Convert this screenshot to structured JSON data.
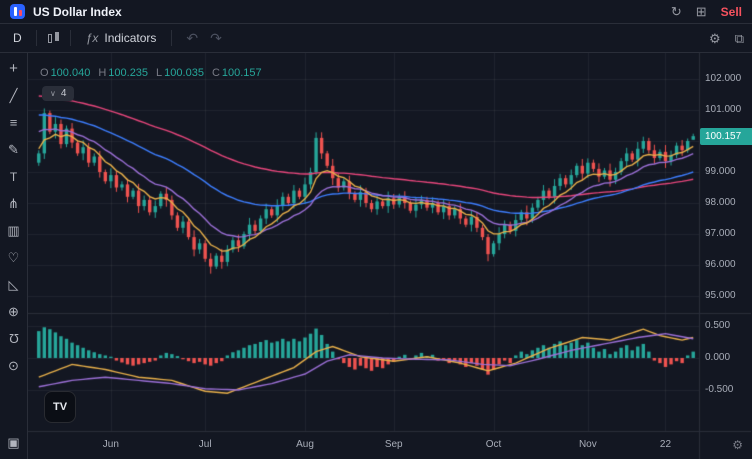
{
  "header": {
    "title": "US Dollar Index",
    "sell_label": "Sell"
  },
  "icons": {
    "refresh": "↻",
    "layout": "⊞",
    "gear": "⚙",
    "fullscreen": "⧉",
    "undo": "↶",
    "redo": "↷",
    "corner_gear": "⚙"
  },
  "toolbar": {
    "interval": "D",
    "fx_glyph": "ƒx",
    "indicators_label": "Indicators"
  },
  "legend": {
    "o_label": "O",
    "o": "100.040",
    "h_label": "H",
    "h": "100.235",
    "l_label": "L",
    "l": "100.035",
    "c_label": "C",
    "c": "100.157"
  },
  "legend_badge": {
    "chevron": "∨",
    "count": "4"
  },
  "watermark": {
    "glyph": "TV"
  },
  "tools": [
    {
      "name": "crosshair",
      "glyph": "+"
    },
    {
      "name": "trend-line",
      "glyph": "╱"
    },
    {
      "name": "fib-retracement",
      "glyph": "≡"
    },
    {
      "name": "brush",
      "glyph": "✎"
    },
    {
      "name": "text",
      "glyph": "T"
    },
    {
      "name": "xabcd-pattern",
      "glyph": "⋔"
    },
    {
      "name": "forecast",
      "glyph": "▥"
    },
    {
      "name": "emoji",
      "glyph": "♡"
    },
    {
      "name": "measure",
      "glyph": "◺"
    },
    {
      "name": "zoom-in",
      "glyph": "⊕"
    },
    {
      "name": "magnet",
      "glyph": "Ω"
    },
    {
      "name": "lock-all",
      "glyph": "⊙"
    }
  ],
  "bottom_tool": {
    "name": "object-tree",
    "glyph": "▣"
  },
  "price_axis": {
    "labels": [
      {
        "value": 102,
        "label": "102.000"
      },
      {
        "value": 101,
        "label": "101.000"
      },
      {
        "value": 100,
        "label": "100.000"
      },
      {
        "value": 99,
        "label": "99.000"
      },
      {
        "value": 98,
        "label": "98.000"
      },
      {
        "value": 97,
        "label": "97.000"
      },
      {
        "value": 96,
        "label": "96.000"
      },
      {
        "value": 95,
        "label": "95.000"
      }
    ],
    "badge": {
      "label": "100.157",
      "price": 100.157,
      "color": "#26a69a"
    }
  },
  "indicator_axis": {
    "labels": [
      {
        "value": 0.5,
        "label": "0.500"
      },
      {
        "value": 0.0,
        "label": "0.000"
      },
      {
        "value": -0.5,
        "label": "-0.500"
      }
    ]
  },
  "time_axis": {
    "ticks": [
      {
        "i": 13,
        "label": "Jun"
      },
      {
        "i": 30,
        "label": "Jul"
      },
      {
        "i": 48,
        "label": "Aug"
      },
      {
        "i": 64,
        "label": "Sep"
      },
      {
        "i": 82,
        "label": "Oct"
      },
      {
        "i": 99,
        "label": "Nov"
      },
      {
        "i": 113,
        "label": "22"
      }
    ]
  },
  "chart_data": {
    "type": "candlestick",
    "title": "US Dollar Index",
    "interval": "D",
    "last": {
      "open": 100.04,
      "high": 100.235,
      "low": 100.035,
      "close": 100.157
    },
    "price_range": {
      "min": 94.5,
      "max": 102.85
    },
    "colors": {
      "up": "#26a69a",
      "down": "#ef5350",
      "grid": "rgba(255,255,255,0.055)",
      "separator": "#2a2e39",
      "background": "#131722"
    },
    "candles": [
      [
        99.3,
        99.7,
        99.2,
        99.6
      ],
      [
        99.6,
        101.05,
        99.42,
        100.9
      ],
      [
        100.9,
        100.98,
        100.22,
        100.3
      ],
      [
        100.3,
        100.77,
        100.08,
        100.55
      ],
      [
        100.55,
        100.69,
        99.76,
        99.9
      ],
      [
        99.9,
        100.5,
        99.8,
        100.4
      ],
      [
        100.4,
        100.58,
        99.77,
        99.95
      ],
      [
        99.95,
        100.03,
        99.52,
        99.6
      ],
      [
        99.6,
        100.02,
        99.38,
        99.8
      ],
      [
        99.8,
        99.94,
        99.16,
        99.3
      ],
      [
        99.3,
        99.6,
        99.2,
        99.5
      ],
      [
        99.5,
        99.68,
        98.82,
        99.0
      ],
      [
        99.0,
        99.08,
        98.62,
        98.7
      ],
      [
        98.7,
        99.12,
        98.48,
        98.9
      ],
      [
        98.9,
        99.04,
        98.36,
        98.5
      ],
      [
        98.5,
        98.7,
        98.4,
        98.6
      ],
      [
        98.6,
        98.78,
        98.02,
        98.2
      ],
      [
        98.2,
        98.48,
        98.12,
        98.4
      ],
      [
        98.4,
        98.62,
        97.68,
        97.9
      ],
      [
        97.9,
        98.24,
        97.76,
        98.1
      ],
      [
        98.1,
        98.2,
        97.6,
        97.7
      ],
      [
        97.7,
        98.08,
        97.52,
        97.9
      ],
      [
        97.9,
        98.38,
        97.82,
        98.3
      ],
      [
        98.3,
        98.52,
        97.88,
        98.1
      ],
      [
        98.1,
        98.24,
        97.46,
        97.6
      ],
      [
        97.6,
        97.7,
        97.1,
        97.2
      ],
      [
        97.2,
        97.58,
        97.02,
        97.4
      ],
      [
        97.4,
        97.48,
        96.82,
        96.9
      ],
      [
        96.9,
        97.12,
        96.28,
        96.5
      ],
      [
        96.5,
        96.84,
        96.36,
        96.7
      ],
      [
        96.7,
        96.8,
        96.1,
        96.2
      ],
      [
        96.2,
        96.38,
        95.72,
        95.95
      ],
      [
        95.95,
        96.38,
        95.87,
        96.3
      ],
      [
        96.3,
        96.52,
        95.88,
        96.1
      ],
      [
        96.1,
        96.64,
        95.96,
        96.5
      ],
      [
        96.5,
        96.9,
        96.4,
        96.8
      ],
      [
        96.8,
        96.98,
        96.42,
        96.6
      ],
      [
        96.6,
        97.08,
        96.52,
        97.0
      ],
      [
        97.0,
        97.52,
        96.78,
        97.3
      ],
      [
        97.3,
        97.44,
        96.96,
        97.1
      ],
      [
        97.1,
        97.6,
        97.0,
        97.5
      ],
      [
        97.5,
        97.98,
        97.32,
        97.8
      ],
      [
        97.8,
        97.88,
        97.52,
        97.6
      ],
      [
        97.6,
        98.12,
        97.38,
        97.9
      ],
      [
        97.9,
        98.34,
        97.76,
        98.2
      ],
      [
        98.2,
        98.3,
        97.9,
        98.0
      ],
      [
        98.0,
        98.58,
        97.82,
        98.4
      ],
      [
        98.4,
        98.48,
        98.12,
        98.2
      ],
      [
        98.2,
        98.82,
        97.98,
        98.6
      ],
      [
        98.6,
        99.14,
        98.46,
        99.0
      ],
      [
        99.0,
        100.28,
        98.9,
        100.1
      ],
      [
        100.1,
        100.28,
        99.42,
        99.6
      ],
      [
        99.6,
        99.68,
        99.12,
        99.2
      ],
      [
        99.2,
        99.42,
        98.58,
        98.8
      ],
      [
        98.8,
        98.94,
        98.36,
        98.5
      ],
      [
        98.5,
        98.8,
        98.4,
        98.7
      ],
      [
        98.7,
        98.88,
        98.12,
        98.3
      ],
      [
        98.3,
        98.38,
        98.02,
        98.1
      ],
      [
        98.1,
        98.57,
        97.88,
        98.35
      ],
      [
        98.35,
        98.49,
        97.86,
        98.0
      ],
      [
        98.0,
        98.1,
        97.7,
        97.8
      ],
      [
        97.8,
        98.23,
        97.62,
        98.05
      ],
      [
        98.05,
        98.13,
        97.82,
        97.9
      ],
      [
        97.9,
        98.37,
        97.68,
        98.15
      ],
      [
        98.15,
        98.29,
        97.81,
        97.95
      ],
      [
        97.95,
        98.3,
        97.85,
        98.2
      ],
      [
        98.2,
        98.38,
        97.82,
        98.0
      ],
      [
        98.0,
        98.08,
        97.67,
        97.75
      ],
      [
        97.75,
        98.17,
        97.53,
        97.95
      ],
      [
        97.95,
        98.24,
        97.81,
        98.1
      ],
      [
        98.1,
        98.2,
        97.75,
        97.85
      ],
      [
        97.85,
        98.18,
        97.67,
        98.0
      ],
      [
        98.0,
        98.08,
        97.62,
        97.7
      ],
      [
        97.7,
        98.12,
        97.48,
        97.9
      ],
      [
        97.9,
        98.04,
        97.46,
        97.6
      ],
      [
        97.6,
        97.9,
        97.5,
        97.8
      ],
      [
        97.8,
        97.98,
        97.32,
        97.5
      ],
      [
        97.5,
        97.58,
        97.22,
        97.3
      ],
      [
        97.3,
        97.77,
        97.08,
        97.55
      ],
      [
        97.55,
        97.69,
        97.06,
        97.2
      ],
      [
        97.2,
        97.3,
        96.8,
        96.9
      ],
      [
        96.9,
        97.0,
        96.12,
        96.35
      ],
      [
        96.35,
        96.78,
        96.27,
        96.7
      ],
      [
        96.7,
        97.22,
        96.48,
        97.0
      ],
      [
        97.0,
        97.44,
        96.86,
        97.3
      ],
      [
        97.3,
        97.4,
        97.0,
        97.1
      ],
      [
        97.1,
        97.63,
        96.92,
        97.45
      ],
      [
        97.45,
        97.78,
        97.37,
        97.7
      ],
      [
        97.7,
        97.92,
        97.28,
        97.5
      ],
      [
        97.5,
        97.99,
        97.36,
        97.85
      ],
      [
        97.85,
        98.2,
        97.75,
        98.1
      ],
      [
        98.1,
        98.58,
        97.92,
        98.4
      ],
      [
        98.4,
        98.48,
        98.12,
        98.2
      ],
      [
        98.2,
        98.77,
        97.98,
        98.55
      ],
      [
        98.55,
        98.94,
        98.41,
        98.8
      ],
      [
        98.8,
        98.9,
        98.5,
        98.6
      ],
      [
        98.6,
        99.08,
        98.42,
        98.9
      ],
      [
        98.9,
        99.28,
        98.82,
        99.2
      ],
      [
        99.2,
        99.42,
        98.73,
        98.95
      ],
      [
        98.95,
        99.44,
        98.81,
        99.3
      ],
      [
        99.3,
        99.4,
        99.0,
        99.1
      ],
      [
        99.1,
        99.28,
        98.67,
        98.85
      ],
      [
        98.85,
        99.13,
        98.77,
        99.05
      ],
      [
        99.05,
        99.27,
        98.53,
        98.75
      ],
      [
        98.75,
        99.14,
        98.61,
        99.0
      ],
      [
        99.0,
        99.45,
        98.9,
        99.35
      ],
      [
        99.35,
        99.78,
        99.17,
        99.6
      ],
      [
        99.6,
        99.68,
        99.32,
        99.4
      ],
      [
        99.4,
        99.97,
        99.18,
        99.75
      ],
      [
        99.75,
        100.14,
        99.61,
        100.0
      ],
      [
        100.0,
        100.1,
        99.6,
        99.7
      ],
      [
        99.7,
        99.88,
        99.27,
        99.45
      ],
      [
        99.45,
        99.73,
        99.37,
        99.65
      ],
      [
        99.65,
        99.87,
        99.13,
        99.35
      ],
      [
        99.35,
        99.69,
        99.21,
        99.55
      ],
      [
        99.55,
        99.95,
        99.45,
        99.85
      ],
      [
        99.85,
        100.03,
        99.52,
        99.7
      ],
      [
        99.7,
        100.08,
        99.62,
        100.0
      ],
      [
        100.04,
        100.235,
        100.035,
        100.157
      ]
    ],
    "overlays": [
      {
        "name": "ema-long",
        "period": 80,
        "seed": 101.5,
        "color": "#e8467c"
      },
      {
        "name": "ema-slow",
        "period": 40,
        "seed": 100.9,
        "color": "#3d7eff"
      },
      {
        "name": "ema-medium",
        "period": 15,
        "seed": 100.4,
        "color": "#9b6fd6"
      },
      {
        "name": "ema-fast",
        "period": 7,
        "seed": 99.8,
        "color": "#e8b04a"
      }
    ],
    "macd": {
      "range": {
        "min": -1.1,
        "max": 0.7
      },
      "histogram": [
        0.42,
        0.48,
        0.45,
        0.4,
        0.34,
        0.3,
        0.24,
        0.2,
        0.16,
        0.12,
        0.09,
        0.06,
        0.04,
        0.02,
        -0.04,
        -0.07,
        -0.1,
        -0.12,
        -0.1,
        -0.08,
        -0.06,
        -0.04,
        0.04,
        0.08,
        0.06,
        0.03,
        -0.02,
        -0.05,
        -0.08,
        -0.06,
        -0.1,
        -0.12,
        -0.08,
        -0.05,
        0.04,
        0.09,
        0.12,
        0.16,
        0.2,
        0.22,
        0.25,
        0.28,
        0.24,
        0.26,
        0.3,
        0.26,
        0.3,
        0.26,
        0.32,
        0.38,
        0.46,
        0.36,
        0.22,
        0.1,
        -0.02,
        -0.08,
        -0.14,
        -0.18,
        -0.12,
        -0.16,
        -0.2,
        -0.14,
        -0.16,
        -0.1,
        -0.06,
        0.02,
        0.05,
        -0.03,
        0.04,
        0.08,
        0.03,
        0.05,
        -0.04,
        -0.02,
        -0.08,
        -0.05,
        -0.1,
        -0.14,
        -0.08,
        -0.12,
        -0.18,
        -0.26,
        -0.18,
        -0.1,
        -0.04,
        -0.08,
        0.04,
        0.1,
        0.06,
        0.12,
        0.16,
        0.2,
        0.16,
        0.22,
        0.26,
        0.2,
        0.24,
        0.28,
        0.2,
        0.24,
        0.16,
        0.1,
        0.14,
        0.06,
        0.1,
        0.16,
        0.2,
        0.12,
        0.18,
        0.22,
        0.1,
        -0.04,
        -0.08,
        -0.14,
        -0.1,
        -0.05,
        -0.08,
        0.04,
        0.1
      ],
      "lines": [
        {
          "name": "macd-line",
          "color": "#e8b04a",
          "points": [
            [
              0,
              -0.3
            ],
            [
              6,
              -0.1
            ],
            [
              12,
              -0.18
            ],
            [
              18,
              -0.3
            ],
            [
              24,
              -0.35
            ],
            [
              30,
              -0.52
            ],
            [
              34,
              -0.55
            ],
            [
              40,
              -0.35
            ],
            [
              46,
              -0.15
            ],
            [
              50,
              0.1
            ],
            [
              53,
              0.18
            ],
            [
              58,
              0.02
            ],
            [
              64,
              -0.05
            ],
            [
              70,
              0.02
            ],
            [
              76,
              -0.08
            ],
            [
              81,
              -0.2
            ],
            [
              86,
              -0.08
            ],
            [
              92,
              0.15
            ],
            [
              98,
              0.32
            ],
            [
              103,
              0.28
            ],
            [
              109,
              0.45
            ],
            [
              112,
              0.35
            ],
            [
              116,
              0.28
            ],
            [
              118,
              0.32
            ]
          ]
        },
        {
          "name": "signal-line",
          "color": "#9b6fd6",
          "points": [
            [
              0,
              -0.45
            ],
            [
              6,
              -0.35
            ],
            [
              12,
              -0.3
            ],
            [
              18,
              -0.35
            ],
            [
              24,
              -0.4
            ],
            [
              30,
              -0.48
            ],
            [
              36,
              -0.5
            ],
            [
              42,
              -0.4
            ],
            [
              48,
              -0.25
            ],
            [
              52,
              -0.05
            ],
            [
              56,
              0.05
            ],
            [
              62,
              0.0
            ],
            [
              68,
              -0.02
            ],
            [
              74,
              -0.03
            ],
            [
              80,
              -0.1
            ],
            [
              85,
              -0.12
            ],
            [
              90,
              -0.02
            ],
            [
              96,
              0.12
            ],
            [
              102,
              0.22
            ],
            [
              108,
              0.32
            ],
            [
              113,
              0.38
            ],
            [
              118,
              0.3
            ]
          ]
        }
      ]
    }
  }
}
